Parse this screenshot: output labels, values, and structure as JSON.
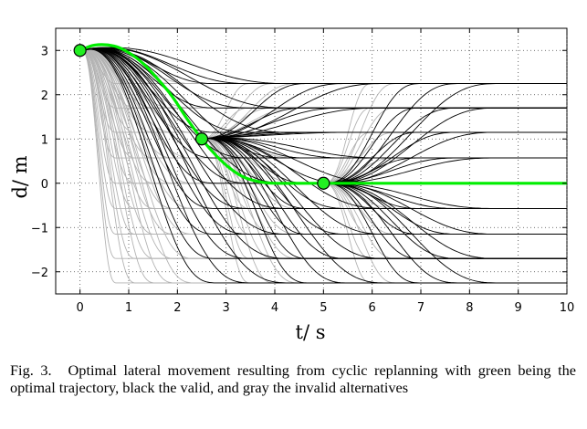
{
  "chart_data": {
    "type": "line",
    "xlabel": "t/ s",
    "ylabel": "d/ m",
    "xlim": [
      -0.5,
      10
    ],
    "ylim": [
      -2.5,
      3.5
    ],
    "xticks": [
      0,
      1,
      2,
      3,
      4,
      5,
      6,
      7,
      8,
      9,
      10
    ],
    "yticks": [
      -2,
      -1,
      0,
      1,
      2,
      3
    ],
    "xtick_labels": [
      "0",
      "1",
      "2",
      "3",
      "4",
      "5",
      "6",
      "7",
      "8",
      "9",
      "10"
    ],
    "ytick_labels": [
      "−2",
      "−1",
      "0",
      "1",
      "2",
      "3"
    ],
    "grid": "dotted",
    "lateral_offsets": [
      2.25,
      1.7,
      1.15,
      0.57,
      0,
      -0.57,
      -1.15,
      -1.7,
      -2.25
    ],
    "series": [
      {
        "role": "optimal trajectory",
        "color": "#00ee00",
        "points": [
          [
            0,
            3.0
          ],
          [
            0.3,
            3.12
          ],
          [
            0.7,
            3.1
          ],
          [
            1.0,
            2.95
          ],
          [
            1.3,
            2.7
          ],
          [
            1.6,
            2.35
          ],
          [
            1.9,
            1.95
          ],
          [
            2.2,
            1.45
          ],
          [
            2.5,
            1.0
          ],
          [
            2.8,
            0.62
          ],
          [
            3.1,
            0.32
          ],
          [
            3.4,
            0.12
          ],
          [
            3.7,
            0.03
          ],
          [
            4.0,
            0.0
          ],
          [
            5.0,
            0.0
          ],
          [
            10.0,
            0.0
          ]
        ]
      }
    ],
    "markers": [
      [
        0,
        3.0
      ],
      [
        2.5,
        1.0
      ],
      [
        5.0,
        0.0
      ]
    ],
    "colors": {
      "optimal": "#00ee00",
      "valid": "#000000",
      "invalid": "#b3b3b3",
      "marker_fill": "#22ee22"
    }
  },
  "caption": {
    "label": "Fig. 3.",
    "text": "Optimal lateral movement resulting from cyclic replanning with green being the optimal trajectory, black the valid, and gray the invalid alternatives"
  }
}
